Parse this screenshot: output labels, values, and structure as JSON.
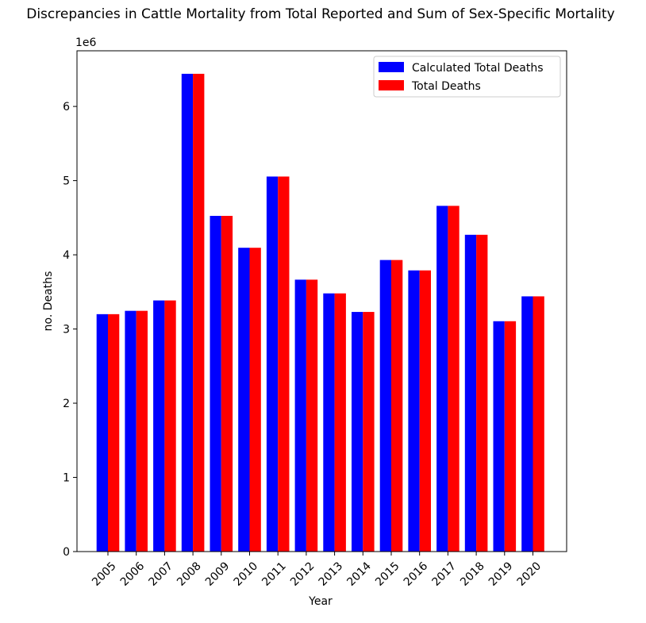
{
  "chart_data": {
    "type": "bar",
    "title": "Discrepancies in Cattle Mortality from Total Reported and Sum of Sex-Specific Mortality",
    "xlabel": "Year",
    "ylabel": "no. Deaths",
    "y_offset_label": "1e6",
    "y_scale": 1000000,
    "ylim": [
      0,
      6750000
    ],
    "yticks": [
      0,
      1000000,
      2000000,
      3000000,
      4000000,
      5000000,
      6000000
    ],
    "ytick_labels": [
      "0",
      "1",
      "2",
      "3",
      "4",
      "5",
      "6"
    ],
    "grid": false,
    "legend_position": "top-right",
    "categories": [
      "2005",
      "2006",
      "2007",
      "2008",
      "2009",
      "2010",
      "2011",
      "2012",
      "2013",
      "2014",
      "2015",
      "2016",
      "2017",
      "2018",
      "2019",
      "2020"
    ],
    "series": [
      {
        "name": "Calculated Total Deaths",
        "color": "#0000ff",
        "values": [
          3200000,
          3245000,
          3385000,
          6440000,
          4525000,
          4095000,
          5055000,
          3665000,
          3480000,
          3230000,
          3930000,
          3790000,
          4660000,
          4270000,
          3105000,
          3440000
        ]
      },
      {
        "name": "Total Deaths",
        "color": "#ff0000",
        "values": [
          3200000,
          3245000,
          3385000,
          6440000,
          4525000,
          4095000,
          5055000,
          3665000,
          3480000,
          3230000,
          3930000,
          3790000,
          4660000,
          4270000,
          3105000,
          3440000
        ]
      }
    ]
  }
}
